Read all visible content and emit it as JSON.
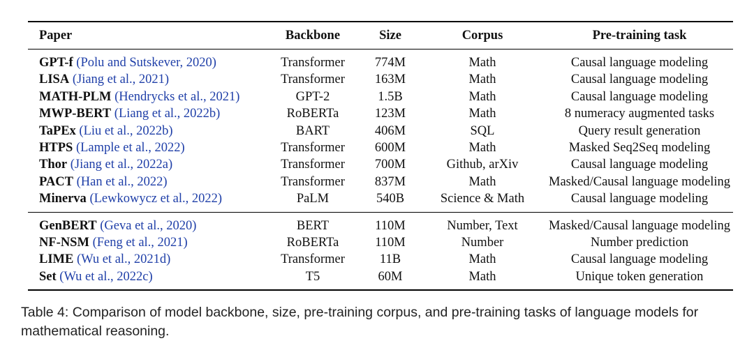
{
  "table": {
    "headers": {
      "paper": "Paper",
      "backbone": "Backbone",
      "size": "Size",
      "corpus": "Corpus",
      "task": "Pre-training task"
    },
    "group1": [
      {
        "name": "GPT-f",
        "cite": "(Polu and Sutskever, 2020)",
        "backbone": "Transformer",
        "size": "774M",
        "corpus": "Math",
        "task": "Causal language modeling"
      },
      {
        "name": "LISA",
        "cite": "(Jiang et al., 2021)",
        "backbone": "Transformer",
        "size": "163M",
        "corpus": "Math",
        "task": "Causal language modeling"
      },
      {
        "name": "MATH-PLM",
        "cite": "(Hendrycks et al., 2021)",
        "backbone": "GPT-2",
        "size": "1.5B",
        "corpus": "Math",
        "task": "Causal language modeling"
      },
      {
        "name": "MWP-BERT",
        "cite": "(Liang et al., 2022b)",
        "backbone": "RoBERTa",
        "size": "123M",
        "corpus": "Math",
        "task": "8 numeracy augmented tasks"
      },
      {
        "name": "TaPEx",
        "cite": "(Liu et al., 2022b)",
        "backbone": "BART",
        "size": "406M",
        "corpus": "SQL",
        "task": "Query result generation"
      },
      {
        "name": "HTPS",
        "cite": "(Lample et al., 2022)",
        "backbone": "Transformer",
        "size": "600M",
        "corpus": "Math",
        "task": "Masked Seq2Seq modeling"
      },
      {
        "name": "Thor",
        "cite": "(Jiang et al., 2022a)",
        "backbone": "Transformer",
        "size": "700M",
        "corpus": "Github, arXiv",
        "task": "Causal language modeling"
      },
      {
        "name": "PACT",
        "cite": "(Han et al., 2022)",
        "backbone": "Transformer",
        "size": "837M",
        "corpus": "Math",
        "task": "Masked/Causal language modeling"
      },
      {
        "name": "Minerva",
        "cite": "(Lewkowycz et al., 2022)",
        "backbone": "PaLM",
        "size": "540B",
        "corpus": "Science & Math",
        "task": "Causal language modeling"
      }
    ],
    "group2": [
      {
        "name": "GenBERT",
        "cite": "(Geva et al., 2020)",
        "backbone": "BERT",
        "size": "110M",
        "corpus": "Number, Text",
        "task": "Masked/Causal language modeling"
      },
      {
        "name": "NF-NSM",
        "cite": "(Feng et al., 2021)",
        "backbone": "RoBERTa",
        "size": "110M",
        "corpus": "Number",
        "task": "Number prediction"
      },
      {
        "name": "LIME",
        "cite": "(Wu et al., 2021d)",
        "backbone": "Transformer",
        "size": "11B",
        "corpus": "Math",
        "task": "Causal language modeling"
      },
      {
        "name": "Set",
        "cite": "(Wu et al., 2022c)",
        "backbone": "T5",
        "size": "60M",
        "corpus": "Math",
        "task": "Unique token generation"
      }
    ]
  },
  "caption": "Table 4: Comparison of model backbone, size, pre-training corpus, and pre-training tasks of language models for mathematical reasoning.",
  "colors": {
    "citation": "#1f3fa8",
    "text": "#111111"
  }
}
